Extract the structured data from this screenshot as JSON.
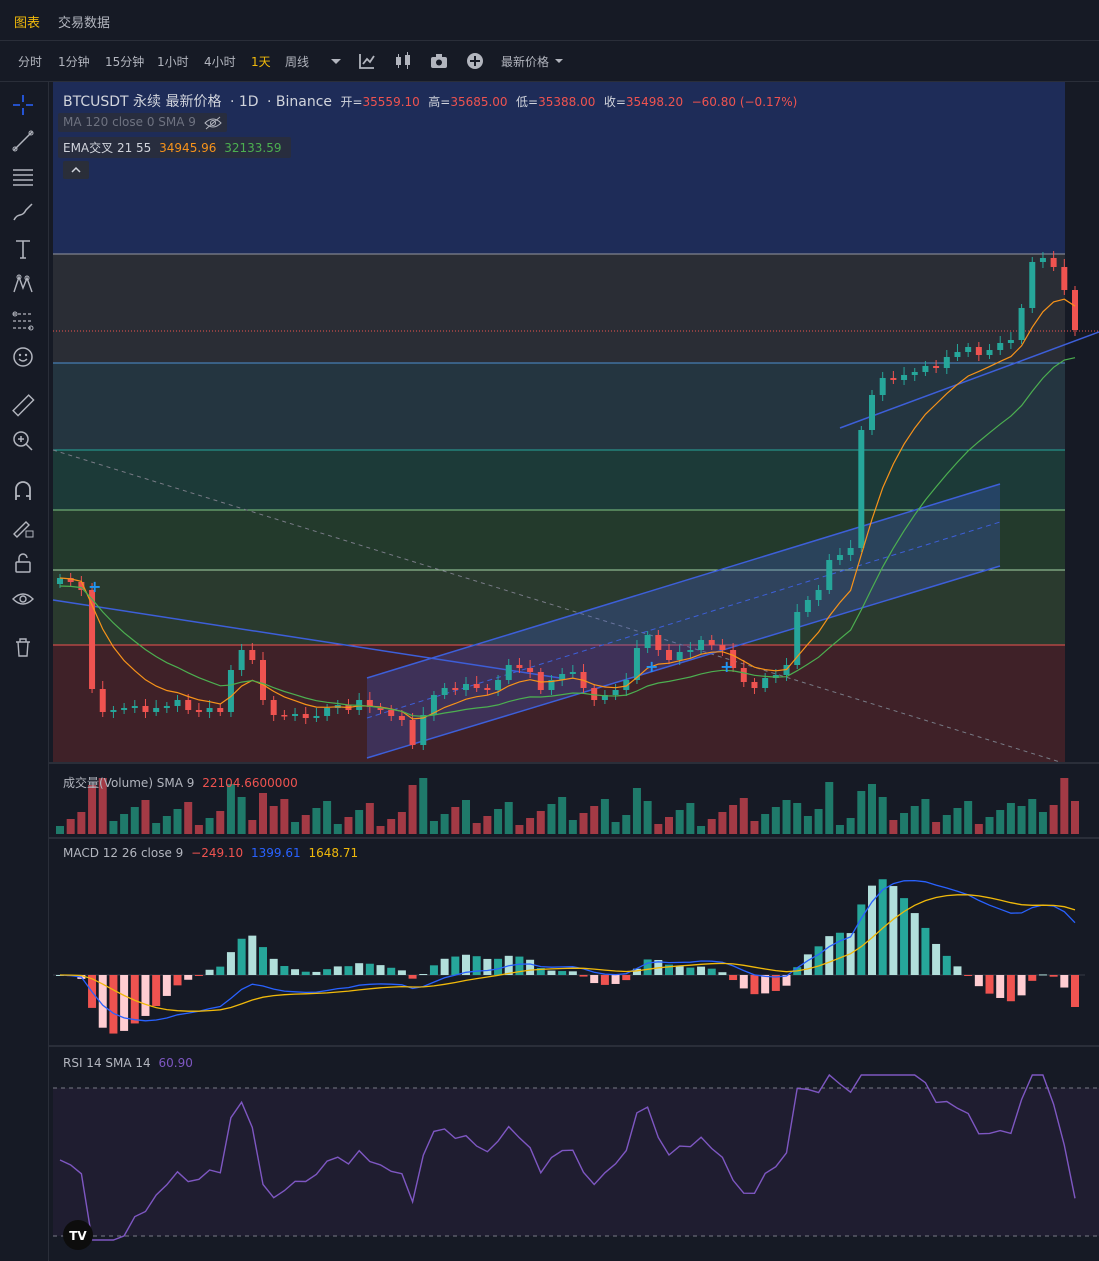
{
  "tabs": [
    {
      "label": "图表",
      "active": true
    },
    {
      "label": "交易数据",
      "active": false
    }
  ],
  "timeframes": [
    {
      "label": "分时",
      "active": false
    },
    {
      "label": "1分钟",
      "active": false
    },
    {
      "label": "15分钟",
      "active": false
    },
    {
      "label": "1小时",
      "active": false
    },
    {
      "label": "4小时",
      "active": false
    },
    {
      "label": "1天",
      "active": true
    },
    {
      "label": "周线",
      "active": false
    }
  ],
  "toolbar": {
    "dropdown_icon": "caret-down-icon",
    "icons": [
      "indicators-icon",
      "candle-style-icon",
      "camera-icon",
      "plus-circle-icon"
    ],
    "price_type": "最新价格"
  },
  "sidebar_icons": [
    "crosshair-icon",
    "trendline-icon",
    "horizontal-lines-icon",
    "brush-icon",
    "text-icon",
    "pattern-icon",
    "fib-icon",
    "emoji-icon",
    "ruler-icon",
    "zoom-in-icon",
    "magnet-icon",
    "lock-draw-icon",
    "lock-icon",
    "eye-icon",
    "trash-icon"
  ],
  "main_legend": {
    "symbol": "BTCUSDT 永续 最新价格",
    "interval": "· 1D",
    "exchange": "· Binance",
    "open_label": "开=",
    "open": "35559.10",
    "high_label": "高=",
    "high": "35685.00",
    "low_label": "低=",
    "low": "35388.00",
    "close_label": "收=",
    "close": "35498.20",
    "change": "−60.80 (−0.17%)"
  },
  "ma_legend": "MA 120 close 0 SMA 9",
  "ema_legend": {
    "label": "EMA交叉 21 55",
    "v1": "34945.96",
    "v2": "32133.59"
  },
  "volume_legend": {
    "label": "成交量(Volume) SMA 9",
    "value": "22104.6600000"
  },
  "macd_legend": {
    "label": "MACD 12 26 close 9",
    "hist": "−249.10",
    "macd": "1399.61",
    "signal": "1648.71"
  },
  "rsi_legend": {
    "label": "RSI 14 SMA 14",
    "value": "60.90"
  },
  "colors": {
    "up": "#26a69a",
    "down": "#ef5350",
    "ema_fast": "#f7931a",
    "ema_slow": "#4caf50",
    "macd": "#2962ff",
    "signal": "#f0b90b",
    "rsi": "#7e57c2",
    "accent": "#f0b90b"
  },
  "logo": "TV"
}
